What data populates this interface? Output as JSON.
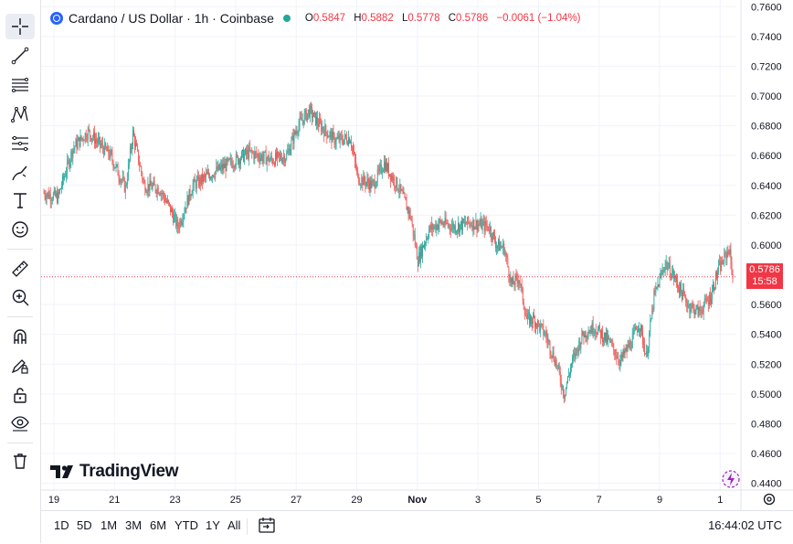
{
  "legend": {
    "symbol_title": "Cardano / US Dollar · 1h · Coinbase",
    "o_label": "O",
    "o_value": "0.5847",
    "h_label": "H",
    "h_value": "0.5882",
    "l_label": "L",
    "l_value": "0.5778",
    "c_label": "C",
    "c_value": "0.5786",
    "change": "−0.0061 (−1.04%)"
  },
  "price_tag": {
    "price": "0.5786",
    "countdown": "15:58",
    "color": "#f23645"
  },
  "colors": {
    "up": "#26a69a",
    "down": "#ef5350",
    "grid": "#f0f3fa",
    "accent": "#2962ff"
  },
  "branding": {
    "wordmark": "TradingView"
  },
  "toolbar": {
    "tools": [
      "crosshair-icon",
      "trend-line-icon",
      "fib-retracement-icon",
      "pattern-icon",
      "prediction-icon",
      "brush-icon",
      "text-icon",
      "emoji-icon",
      "ruler-icon",
      "zoom-in-icon",
      "magnet-icon",
      "lock-pencil-icon",
      "lock-icon",
      "eye-icon",
      "trash-icon"
    ]
  },
  "bottom_bar": {
    "ranges": [
      "1D",
      "5D",
      "1M",
      "3M",
      "6M",
      "YTD",
      "1Y",
      "All"
    ],
    "clock": "16:44:02 UTC"
  },
  "chart_data": {
    "type": "candlestick",
    "title": "Cardano / US Dollar · 1h · Coinbase",
    "y_ticks": [
      "0.7600",
      "0.7400",
      "0.7200",
      "0.7000",
      "0.6800",
      "0.6600",
      "0.6400",
      "0.6200",
      "0.6000",
      "0.5800",
      "0.5600",
      "0.5400",
      "0.5200",
      "0.5000",
      "0.4800",
      "0.4600",
      "0.4400"
    ],
    "x_ticks": [
      "19",
      "21",
      "23",
      "25",
      "27",
      "29",
      "Nov",
      "3",
      "5",
      "7",
      "9",
      "1"
    ],
    "ylim": [
      0.433,
      0.762
    ],
    "current_price": 0.5786,
    "grid": true,
    "series_path": [
      {
        "t": 0,
        "p": 0.635
      },
      {
        "t": 4,
        "p": 0.632
      },
      {
        "t": 8,
        "p": 0.665
      },
      {
        "t": 12,
        "p": 0.676
      },
      {
        "t": 18,
        "p": 0.66
      },
      {
        "t": 22,
        "p": 0.638
      },
      {
        "t": 24,
        "p": 0.675
      },
      {
        "t": 27,
        "p": 0.64
      },
      {
        "t": 31,
        "p": 0.638
      },
      {
        "t": 34,
        "p": 0.624
      },
      {
        "t": 36,
        "p": 0.612
      },
      {
        "t": 40,
        "p": 0.64
      },
      {
        "t": 45,
        "p": 0.648
      },
      {
        "t": 50,
        "p": 0.655
      },
      {
        "t": 55,
        "p": 0.662
      },
      {
        "t": 61,
        "p": 0.657
      },
      {
        "t": 65,
        "p": 0.66
      },
      {
        "t": 68,
        "p": 0.68
      },
      {
        "t": 71,
        "p": 0.69
      },
      {
        "t": 74,
        "p": 0.68
      },
      {
        "t": 78,
        "p": 0.67
      },
      {
        "t": 82,
        "p": 0.672
      },
      {
        "t": 84,
        "p": 0.645
      },
      {
        "t": 88,
        "p": 0.64
      },
      {
        "t": 91,
        "p": 0.655
      },
      {
        "t": 95,
        "p": 0.638
      },
      {
        "t": 98,
        "p": 0.62
      },
      {
        "t": 100,
        "p": 0.59
      },
      {
        "t": 103,
        "p": 0.61
      },
      {
        "t": 106,
        "p": 0.615
      },
      {
        "t": 110,
        "p": 0.612
      },
      {
        "t": 114,
        "p": 0.615
      },
      {
        "t": 119,
        "p": 0.612
      },
      {
        "t": 121,
        "p": 0.6
      },
      {
        "t": 123,
        "p": 0.598
      },
      {
        "t": 125,
        "p": 0.573
      },
      {
        "t": 127,
        "p": 0.578
      },
      {
        "t": 129,
        "p": 0.55
      },
      {
        "t": 131,
        "p": 0.55
      },
      {
        "t": 134,
        "p": 0.54
      },
      {
        "t": 137,
        "p": 0.52
      },
      {
        "t": 139,
        "p": 0.5
      },
      {
        "t": 141,
        "p": 0.52
      },
      {
        "t": 144,
        "p": 0.54
      },
      {
        "t": 147,
        "p": 0.545
      },
      {
        "t": 151,
        "p": 0.535
      },
      {
        "t": 154,
        "p": 0.522
      },
      {
        "t": 157,
        "p": 0.535
      },
      {
        "t": 159,
        "p": 0.548
      },
      {
        "t": 161,
        "p": 0.525
      },
      {
        "t": 163,
        "p": 0.565
      },
      {
        "t": 166,
        "p": 0.588
      },
      {
        "t": 168,
        "p": 0.58
      },
      {
        "t": 170,
        "p": 0.57
      },
      {
        "t": 172,
        "p": 0.56
      },
      {
        "t": 175,
        "p": 0.555
      },
      {
        "t": 178,
        "p": 0.565
      },
      {
        "t": 180,
        "p": 0.582
      },
      {
        "t": 182,
        "p": 0.592
      },
      {
        "t": 183,
        "p": 0.598
      },
      {
        "t": 184,
        "p": 0.579
      }
    ]
  }
}
